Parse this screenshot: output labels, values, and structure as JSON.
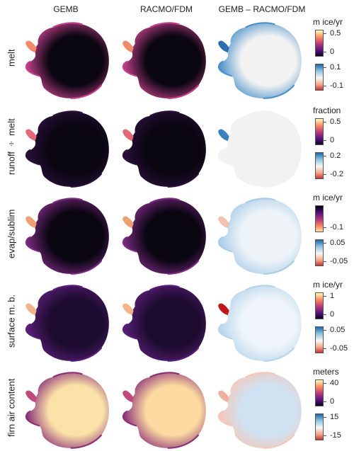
{
  "columns": [
    "GEMB",
    "RACMO/FDM",
    "GEMB – RACMO/FDM"
  ],
  "rows": [
    {
      "label": "melt",
      "unit": "m ice/yr",
      "scale1": {
        "ticks": [
          "0.5",
          "0"
        ],
        "palette": "magma"
      },
      "scale2": {
        "ticks": [
          "0.1",
          "-0.1"
        ],
        "palette": "diverging"
      },
      "interior": {
        "gemb": "#0a0612",
        "racmo": "#0a0612",
        "diff": "#f2f2f2"
      },
      "edge": {
        "gemb": "#c4408a",
        "racmo": "#c4408a",
        "diff": "#4a90c8"
      },
      "peninsula": {
        "gemb": "#f08a6a",
        "racmo": "#f08a6a",
        "diff": "#2a70b0"
      }
    },
    {
      "label": "runoff ÷ melt",
      "unit": "fraction",
      "scale1": {
        "ticks": [
          "0.5",
          "0"
        ],
        "palette": "magma"
      },
      "scale2": {
        "ticks": [
          "0.2",
          "-0.2"
        ],
        "palette": "diverging"
      },
      "interior": {
        "gemb": "#0a0612",
        "racmo": "#0a0612",
        "diff": "#f2f2f2"
      },
      "edge": {
        "gemb": "#2a0f3a",
        "racmo": "#2a0f3a",
        "diff": "#f2f2f2"
      },
      "peninsula": {
        "gemb": "#e06a7a",
        "racmo": "#e06a7a",
        "diff": "#3a80c0"
      }
    },
    {
      "label": "evap/sublim",
      "unit": "m ice/yr",
      "scale1": {
        "ticks": [
          "-0.1"
        ],
        "palette": "magma_r"
      },
      "scale2": {
        "ticks": [
          "0.05",
          "-0.05"
        ],
        "palette": "diverging"
      },
      "interior": {
        "gemb": "#0a0612",
        "racmo": "#0a0612",
        "diff": "#eef3f8"
      },
      "edge": {
        "gemb": "#7a2a80",
        "racmo": "#7a2a80",
        "diff": "#a8cbe6"
      },
      "peninsula": {
        "gemb": "#f0a070",
        "racmo": "#f0a070",
        "diff": "#f4c0b0"
      }
    },
    {
      "label": "surface m. b.",
      "unit": "m ice/yr",
      "scale1": {
        "ticks": [
          "1",
          "0"
        ],
        "palette": "magma"
      },
      "scale2": {
        "ticks": [
          "0.05",
          "-0.05"
        ],
        "palette": "diverging"
      },
      "interior": {
        "gemb": "#1e0c30",
        "racmo": "#1e0c30",
        "diff": "#eef4fa"
      },
      "edge": {
        "gemb": "#5a1e78",
        "racmo": "#5a1e78",
        "diff": "#b6d4ea"
      },
      "peninsula": {
        "gemb": "#f3b48a",
        "racmo": "#f3b48a",
        "diff": "#c01818"
      }
    },
    {
      "label": "firn air content",
      "unit": "meters",
      "scale1": {
        "ticks": [
          "40",
          "0"
        ],
        "palette": "magma"
      },
      "scale2": {
        "ticks": [
          "15",
          "-15"
        ],
        "palette": "diverging"
      },
      "interior": {
        "gemb": "#fbe2a8",
        "racmo": "#fbd9a0",
        "diff": "#cfe2f2"
      },
      "edge": {
        "gemb": "#8a2e78",
        "racmo": "#8a2e78",
        "diff": "#f5c6b6"
      },
      "peninsula": {
        "gemb": "#c04a7a",
        "racmo": "#c04a7a",
        "diff": "#f0b0a0"
      }
    }
  ]
}
